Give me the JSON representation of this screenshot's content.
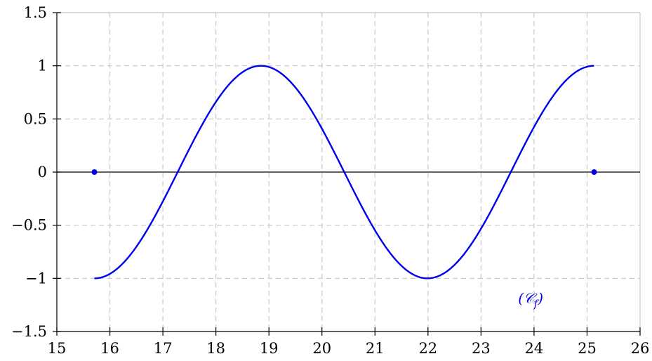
{
  "chart_data": {
    "type": "line",
    "xlim": [
      15,
      26
    ],
    "ylim": [
      -1.5,
      1.5
    ],
    "x_ticks": [
      "15",
      "16",
      "17",
      "18",
      "19",
      "20",
      "21",
      "22",
      "23",
      "24",
      "25",
      "26"
    ],
    "y_ticks": [
      "−1.5",
      "−1",
      "−0.5",
      "0",
      "0.5",
      "1",
      "1.5"
    ],
    "grid": true,
    "series": [
      {
        "function": "cos(x)",
        "domain": [
          15.708,
          25.133
        ],
        "endpoints": [
          [
            15.708,
            0
          ],
          [
            25.133,
            0
          ]
        ],
        "color": "#0000ee"
      }
    ],
    "curve_label": "(𝒞f)",
    "curve_label_parts": {
      "main": "(𝒞",
      "sub": "f",
      "close": ")"
    }
  }
}
